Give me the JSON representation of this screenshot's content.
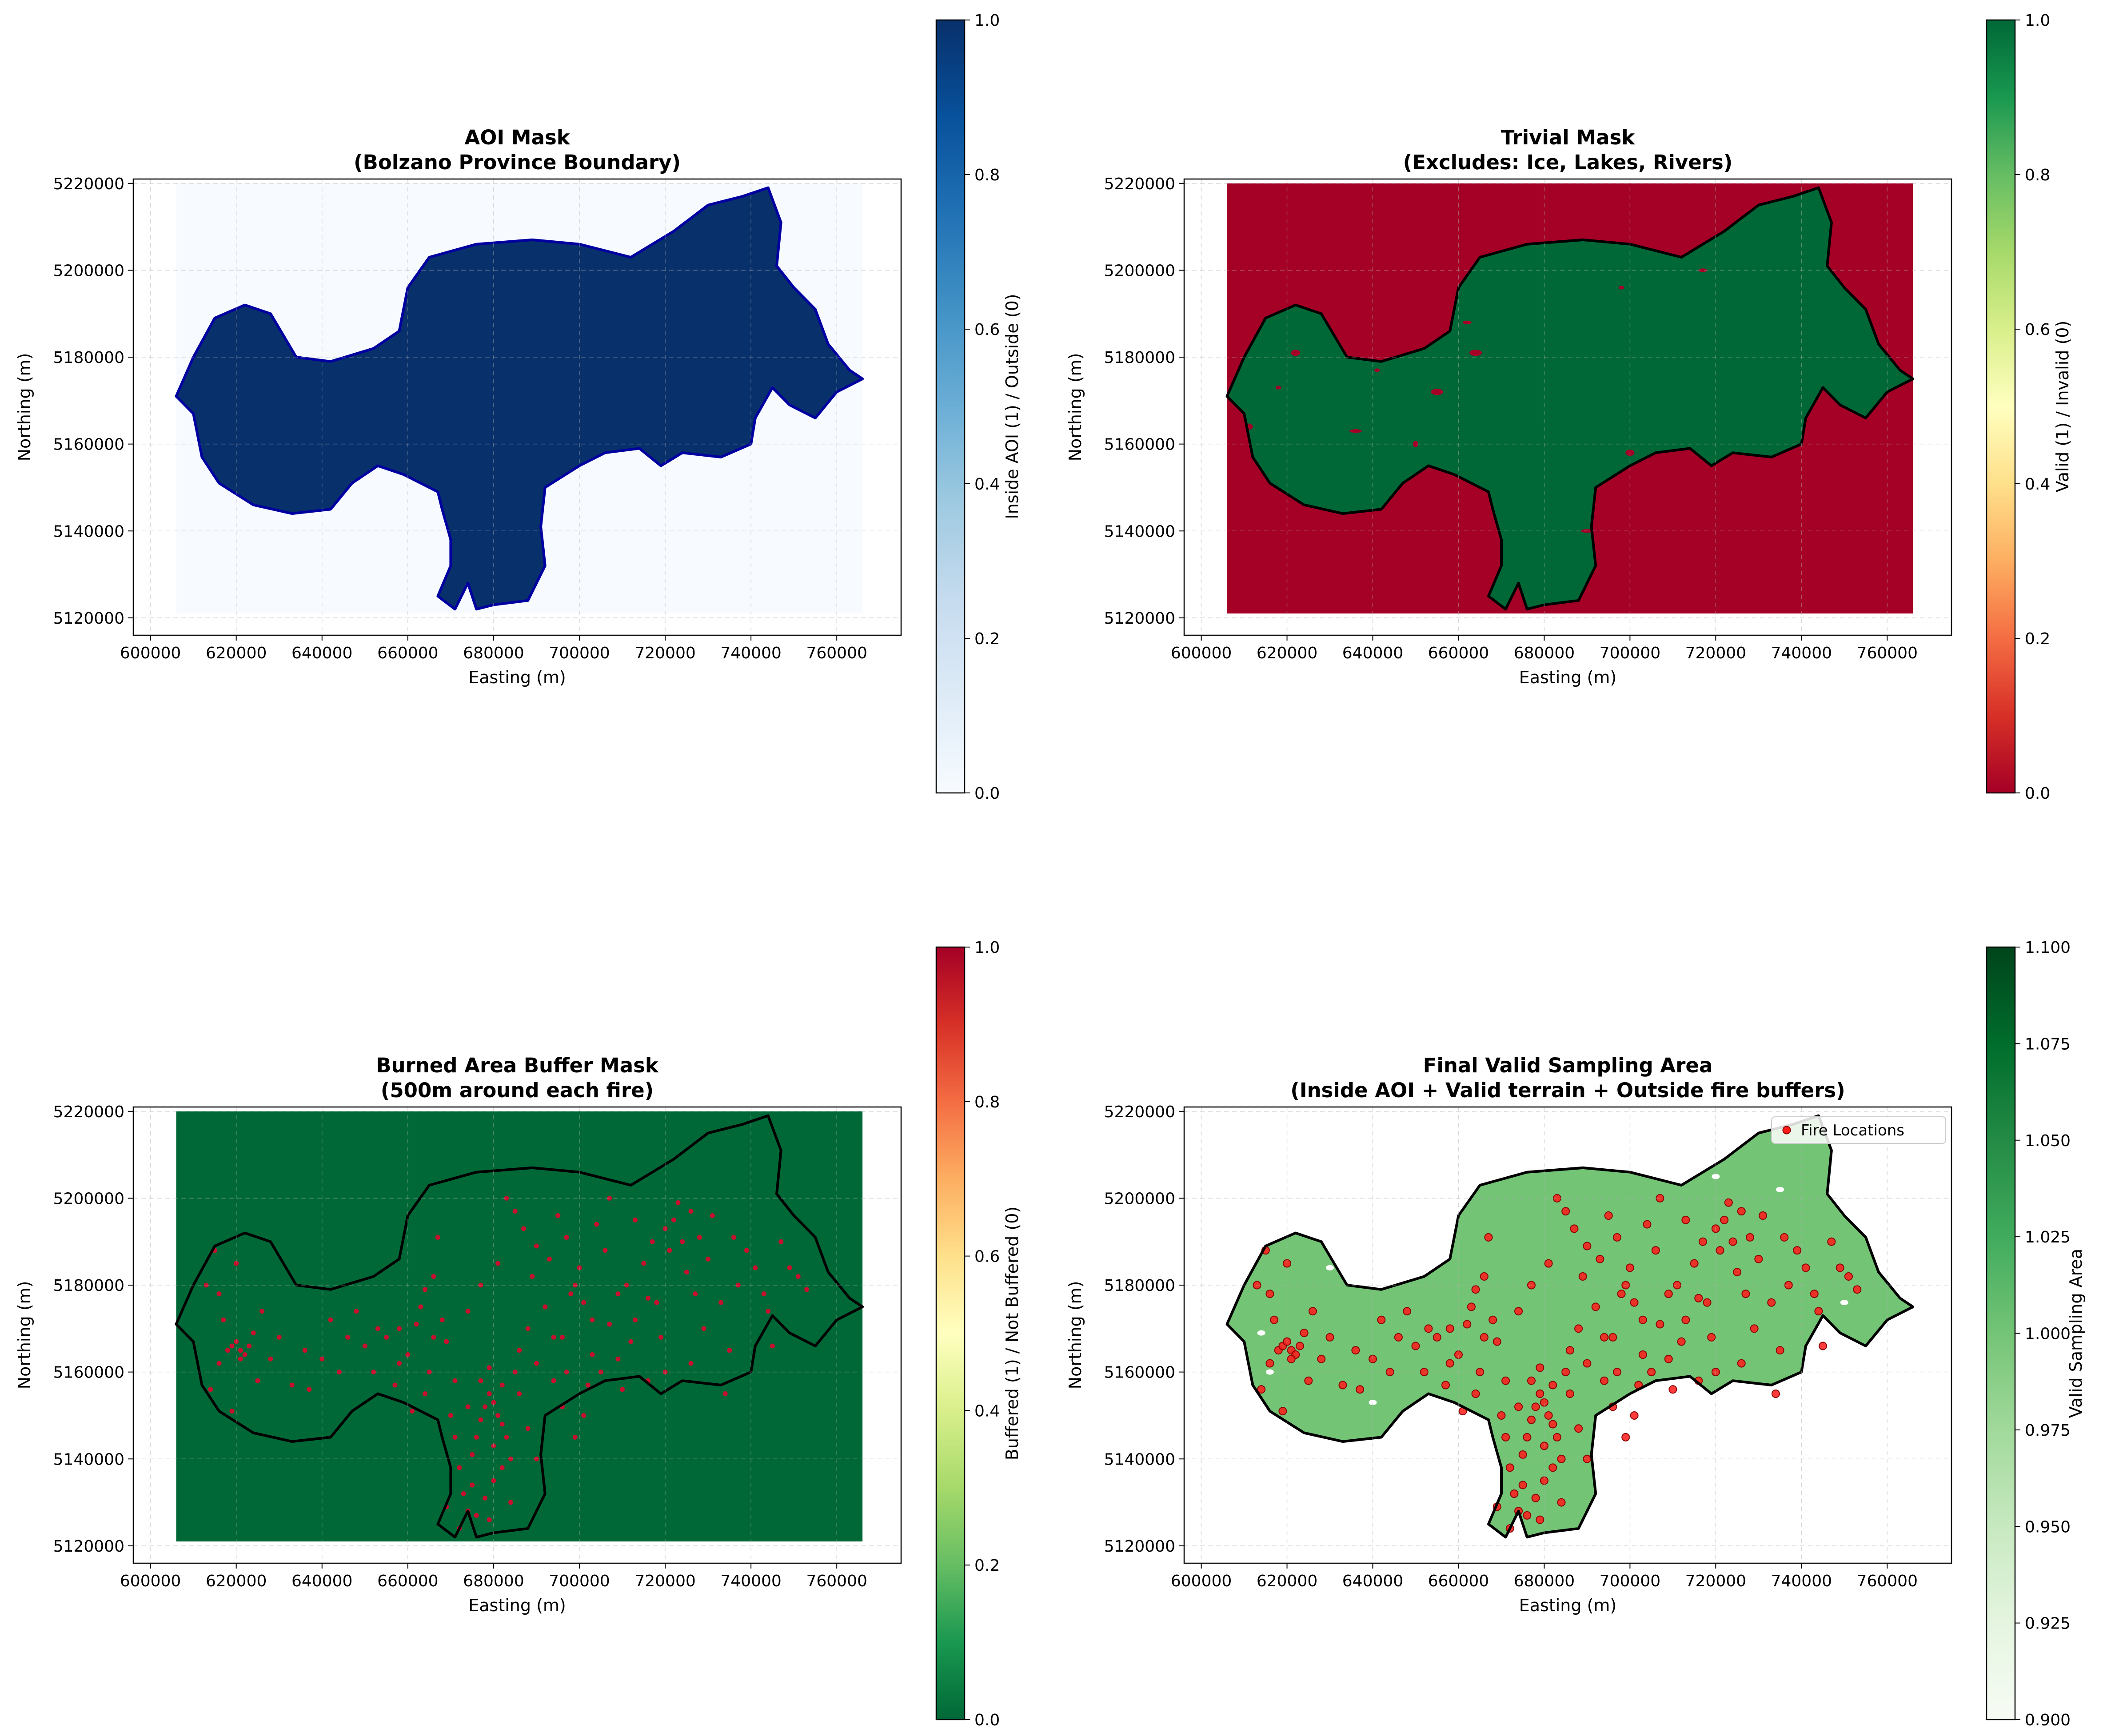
{
  "figure": {
    "x_ticks": [
      "600000",
      "620000",
      "640000",
      "660000",
      "680000",
      "700000",
      "720000",
      "740000",
      "760000"
    ],
    "y_ticks": [
      "5220000",
      "5200000",
      "5180000",
      "5160000",
      "5140000",
      "5120000"
    ],
    "xlabel": "Easting (m)",
    "ylabel": "Northing (m)"
  },
  "panels": [
    {
      "title_line1": "AOI Mask",
      "title_line2": "(Bolzano Province Boundary)",
      "colorbar_label": "Inside AOI (1) / Outside (0)",
      "colorbar_ticks": [
        "0.0",
        "0.2",
        "0.4",
        "0.6",
        "0.8",
        "1.0"
      ],
      "colormap": "Blues",
      "colors": {
        "inside": "#08306b",
        "outside": "#f7fbff",
        "boundary": "#0000a0"
      }
    },
    {
      "title_line1": "Trivial Mask",
      "title_line2": "(Excludes: Ice, Lakes, Rivers)",
      "colorbar_label": "Valid (1) / Invalid (0)",
      "colorbar_ticks": [
        "0.0",
        "0.2",
        "0.4",
        "0.6",
        "0.8",
        "1.0"
      ],
      "colormap": "RdYlGn",
      "colors": {
        "valid": "#006837",
        "invalid": "#a50026",
        "boundary": "#000000"
      }
    },
    {
      "title_line1": "Burned Area Buffer Mask",
      "title_line2": "(500m around each fire)",
      "colorbar_label": "Buffered (1) / Not Buffered (0)",
      "colorbar_ticks": [
        "0.0",
        "0.2",
        "0.4",
        "0.6",
        "0.8",
        "1.0"
      ],
      "colormap": "RdYlGn_r",
      "colors": {
        "not_buffered": "#006837",
        "buffered": "#c8102e",
        "boundary": "#000000"
      }
    },
    {
      "title_line1": "Final Valid Sampling Area",
      "title_line2": "(Inside AOI + Valid terrain + Outside fire buffers)",
      "colorbar_label": "Valid Sampling Area",
      "colorbar_ticks": [
        "0.900",
        "0.925",
        "0.950",
        "0.975",
        "1.000",
        "1.025",
        "1.050",
        "1.075",
        "1.100"
      ],
      "colormap": "Greens",
      "legend": "Fire Locations",
      "colors": {
        "valid": "#74c476",
        "fire": "#ff1a1a",
        "boundary": "#000000"
      }
    }
  ],
  "chart_data": {
    "type": "scatter",
    "x_range": [
      596000,
      775000
    ],
    "y_range": [
      5116000,
      5221000
    ],
    "raster_extent": {
      "x": [
        606000,
        766000
      ],
      "y": [
        5121000,
        5220000
      ]
    },
    "boundary": [
      [
        606000,
        5171000
      ],
      [
        610000,
        5180000
      ],
      [
        615000,
        5189000
      ],
      [
        622000,
        5192000
      ],
      [
        628000,
        5190000
      ],
      [
        634000,
        5180000
      ],
      [
        642000,
        5179000
      ],
      [
        652000,
        5182000
      ],
      [
        658000,
        5186000
      ],
      [
        660000,
        5196000
      ],
      [
        665000,
        5203000
      ],
      [
        676000,
        5206000
      ],
      [
        689000,
        5207000
      ],
      [
        700000,
        5206000
      ],
      [
        712000,
        5203000
      ],
      [
        722000,
        5209000
      ],
      [
        730000,
        5215000
      ],
      [
        738000,
        5217000
      ],
      [
        744000,
        5219000
      ],
      [
        747000,
        5211000
      ],
      [
        746000,
        5201000
      ],
      [
        750000,
        5196000
      ],
      [
        755000,
        5191000
      ],
      [
        758000,
        5183000
      ],
      [
        763000,
        5177000
      ],
      [
        766000,
        5175000
      ],
      [
        760000,
        5172000
      ],
      [
        755000,
        5166000
      ],
      [
        749000,
        5169000
      ],
      [
        745000,
        5173000
      ],
      [
        741000,
        5166000
      ],
      [
        740000,
        5160000
      ],
      [
        733000,
        5157000
      ],
      [
        724000,
        5158000
      ],
      [
        719000,
        5155000
      ],
      [
        714000,
        5159000
      ],
      [
        706000,
        5158000
      ],
      [
        700000,
        5155000
      ],
      [
        692000,
        5150000
      ],
      [
        691000,
        5141000
      ],
      [
        692000,
        5132000
      ],
      [
        688000,
        5124000
      ],
      [
        680000,
        5123000
      ],
      [
        676000,
        5122000
      ],
      [
        674000,
        5128000
      ],
      [
        671000,
        5122000
      ],
      [
        667000,
        5125000
      ],
      [
        670000,
        5132000
      ],
      [
        670000,
        5138000
      ],
      [
        668000,
        5145000
      ],
      [
        667000,
        5149000
      ],
      [
        659000,
        5153000
      ],
      [
        653000,
        5155000
      ],
      [
        647000,
        5151000
      ],
      [
        642000,
        5145000
      ],
      [
        633000,
        5144000
      ],
      [
        624000,
        5146000
      ],
      [
        616000,
        5151000
      ],
      [
        612000,
        5157000
      ],
      [
        610000,
        5167000
      ],
      [
        606000,
        5171000
      ]
    ],
    "series": [
      {
        "name": "Fire Locations",
        "points": [
          [
            615000,
            5188000
          ],
          [
            616000,
            5178000
          ],
          [
            617000,
            5172000
          ],
          [
            618000,
            5165000
          ],
          [
            619000,
            5166000
          ],
          [
            620000,
            5167000
          ],
          [
            621000,
            5165000
          ],
          [
            622000,
            5164000
          ],
          [
            623000,
            5166000
          ],
          [
            621000,
            5163000
          ],
          [
            624000,
            5169000
          ],
          [
            626000,
            5174000
          ],
          [
            620000,
            5185000
          ],
          [
            614000,
            5156000
          ],
          [
            619000,
            5151000
          ],
          [
            628000,
            5163000
          ],
          [
            633000,
            5157000
          ],
          [
            636000,
            5165000
          ],
          [
            640000,
            5163000
          ],
          [
            644000,
            5160000
          ],
          [
            646000,
            5168000
          ],
          [
            648000,
            5174000
          ],
          [
            652000,
            5160000
          ],
          [
            655000,
            5168000
          ],
          [
            657000,
            5157000
          ],
          [
            658000,
            5170000
          ],
          [
            660000,
            5164000
          ],
          [
            662000,
            5171000
          ],
          [
            663000,
            5175000
          ],
          [
            665000,
            5160000
          ],
          [
            666000,
            5182000
          ],
          [
            667000,
            5191000
          ],
          [
            669000,
            5167000
          ],
          [
            670000,
            5150000
          ],
          [
            671000,
            5145000
          ],
          [
            672000,
            5138000
          ],
          [
            673000,
            5132000
          ],
          [
            674000,
            5128000
          ],
          [
            675000,
            5141000
          ],
          [
            676000,
            5145000
          ],
          [
            677000,
            5149000
          ],
          [
            678000,
            5152000
          ],
          [
            679000,
            5155000
          ],
          [
            680000,
            5153000
          ],
          [
            681000,
            5150000
          ],
          [
            682000,
            5148000
          ],
          [
            683000,
            5145000
          ],
          [
            684000,
            5140000
          ],
          [
            680000,
            5135000
          ],
          [
            678000,
            5131000
          ],
          [
            676000,
            5127000
          ],
          [
            672000,
            5124000
          ],
          [
            669000,
            5129000
          ],
          [
            682000,
            5157000
          ],
          [
            685000,
            5160000
          ],
          [
            686000,
            5165000
          ],
          [
            688000,
            5170000
          ],
          [
            690000,
            5162000
          ],
          [
            692000,
            5175000
          ],
          [
            694000,
            5158000
          ],
          [
            696000,
            5168000
          ],
          [
            698000,
            5178000
          ],
          [
            699000,
            5180000
          ],
          [
            700000,
            5184000
          ],
          [
            701000,
            5176000
          ],
          [
            703000,
            5164000
          ],
          [
            705000,
            5160000
          ],
          [
            707000,
            5171000
          ],
          [
            709000,
            5163000
          ],
          [
            711000,
            5180000
          ],
          [
            713000,
            5172000
          ],
          [
            715000,
            5185000
          ],
          [
            717000,
            5190000
          ],
          [
            718000,
            5176000
          ],
          [
            720000,
            5193000
          ],
          [
            721000,
            5188000
          ],
          [
            722000,
            5195000
          ],
          [
            723000,
            5199000
          ],
          [
            724000,
            5190000
          ],
          [
            725000,
            5183000
          ],
          [
            726000,
            5197000
          ],
          [
            728000,
            5191000
          ],
          [
            730000,
            5186000
          ],
          [
            731000,
            5196000
          ],
          [
            733000,
            5176000
          ],
          [
            735000,
            5165000
          ],
          [
            737000,
            5180000
          ],
          [
            739000,
            5188000
          ],
          [
            741000,
            5184000
          ],
          [
            743000,
            5178000
          ],
          [
            745000,
            5166000
          ],
          [
            747000,
            5190000
          ],
          [
            749000,
            5184000
          ],
          [
            751000,
            5182000
          ],
          [
            753000,
            5179000
          ],
          [
            683000,
            5200000
          ],
          [
            685000,
            5197000
          ],
          [
            687000,
            5193000
          ],
          [
            690000,
            5189000
          ],
          [
            693000,
            5186000
          ],
          [
            695000,
            5196000
          ],
          [
            697000,
            5191000
          ],
          [
            704000,
            5194000
          ],
          [
            706000,
            5188000
          ],
          [
            681000,
            5185000
          ],
          [
            677000,
            5180000
          ],
          [
            674000,
            5174000
          ],
          [
            664000,
            5155000
          ],
          [
            661000,
            5151000
          ],
          [
            701000,
            5150000
          ],
          [
            699000,
            5145000
          ],
          [
            696000,
            5152000
          ],
          [
            710000,
            5156000
          ],
          [
            716000,
            5158000
          ],
          [
            726000,
            5162000
          ],
          [
            729000,
            5170000
          ],
          [
            712000,
            5167000
          ],
          [
            679000,
            5161000
          ],
          [
            686000,
            5155000
          ],
          [
            688000,
            5147000
          ],
          [
            675000,
            5134000
          ],
          [
            679000,
            5126000
          ],
          [
            684000,
            5130000
          ],
          [
            690000,
            5140000
          ],
          [
            677000,
            5158000
          ],
          [
            671000,
            5158000
          ],
          [
            668000,
            5172000
          ],
          [
            642000,
            5172000
          ],
          [
            637000,
            5156000
          ],
          [
            653000,
            5170000
          ],
          [
            658000,
            5162000
          ],
          [
            664000,
            5179000
          ],
          [
            689000,
            5182000
          ],
          [
            703000,
            5172000
          ],
          [
            709000,
            5178000
          ],
          [
            719000,
            5168000
          ],
          [
            734000,
            5155000
          ],
          [
            727000,
            5178000
          ],
          [
            736000,
            5191000
          ],
          [
            744000,
            5174000
          ],
          [
            707000,
            5200000
          ],
          [
            713000,
            5195000
          ],
          [
            716000,
            5177000
          ],
          [
            720000,
            5160000
          ],
          [
            694000,
            5168000
          ],
          [
            697000,
            5160000
          ],
          [
            702000,
            5157000
          ],
          [
            680000,
            5143000
          ],
          [
            682000,
            5138000
          ],
          [
            674000,
            5152000
          ],
          [
            666000,
            5168000
          ],
          [
            650000,
            5166000
          ],
          [
            630000,
            5168000
          ],
          [
            625000,
            5158000
          ],
          [
            616000,
            5162000
          ],
          [
            613000,
            5180000
          ]
        ]
      }
    ]
  }
}
